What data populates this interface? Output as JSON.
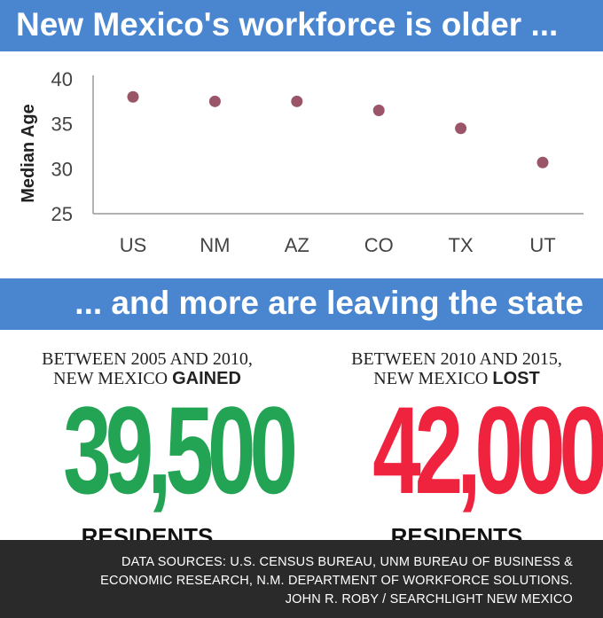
{
  "header": {
    "title": "New Mexico's workforce is older ..."
  },
  "chart_data": {
    "type": "scatter",
    "categories": [
      "US",
      "NM",
      "AZ",
      "CO",
      "TX",
      "UT"
    ],
    "values": [
      38.0,
      37.5,
      37.5,
      36.5,
      34.5,
      30.7
    ],
    "ylabel": "Median Age",
    "xlabel": "",
    "ylim": [
      25,
      40
    ],
    "yticks": [
      25,
      30,
      35,
      40
    ],
    "grid": false,
    "colors": {
      "point": "#9b5568",
      "axis": "#999999",
      "text": "#444444"
    }
  },
  "subheader": {
    "title": "... and more are leaving the state"
  },
  "stats": {
    "left": {
      "line1": "BETWEEN 2005 AND 2010,",
      "line2_prefix": "NEW MEXICO ",
      "line2_emphasis": "GAINED",
      "number": "39,500",
      "unit": "RESIDENTS",
      "color": "#23a455"
    },
    "right": {
      "line1": "BETWEEN 2010 AND 2015,",
      "line2_prefix": "NEW MEXICO ",
      "line2_emphasis": "LOST",
      "number": "42,000",
      "unit": "RESIDENTS",
      "color": "#f0233e"
    }
  },
  "footer": {
    "line1": "DATA SOURCES: U.S. CENSUS BUREAU, UNM BUREAU OF BUSINESS &",
    "line2": "ECONOMIC RESEARCH, N.M. DEPARTMENT OF WORKFORCE SOLUTIONS.",
    "line3": "JOHN R. ROBY / SEARCHLIGHT NEW MEXICO"
  }
}
